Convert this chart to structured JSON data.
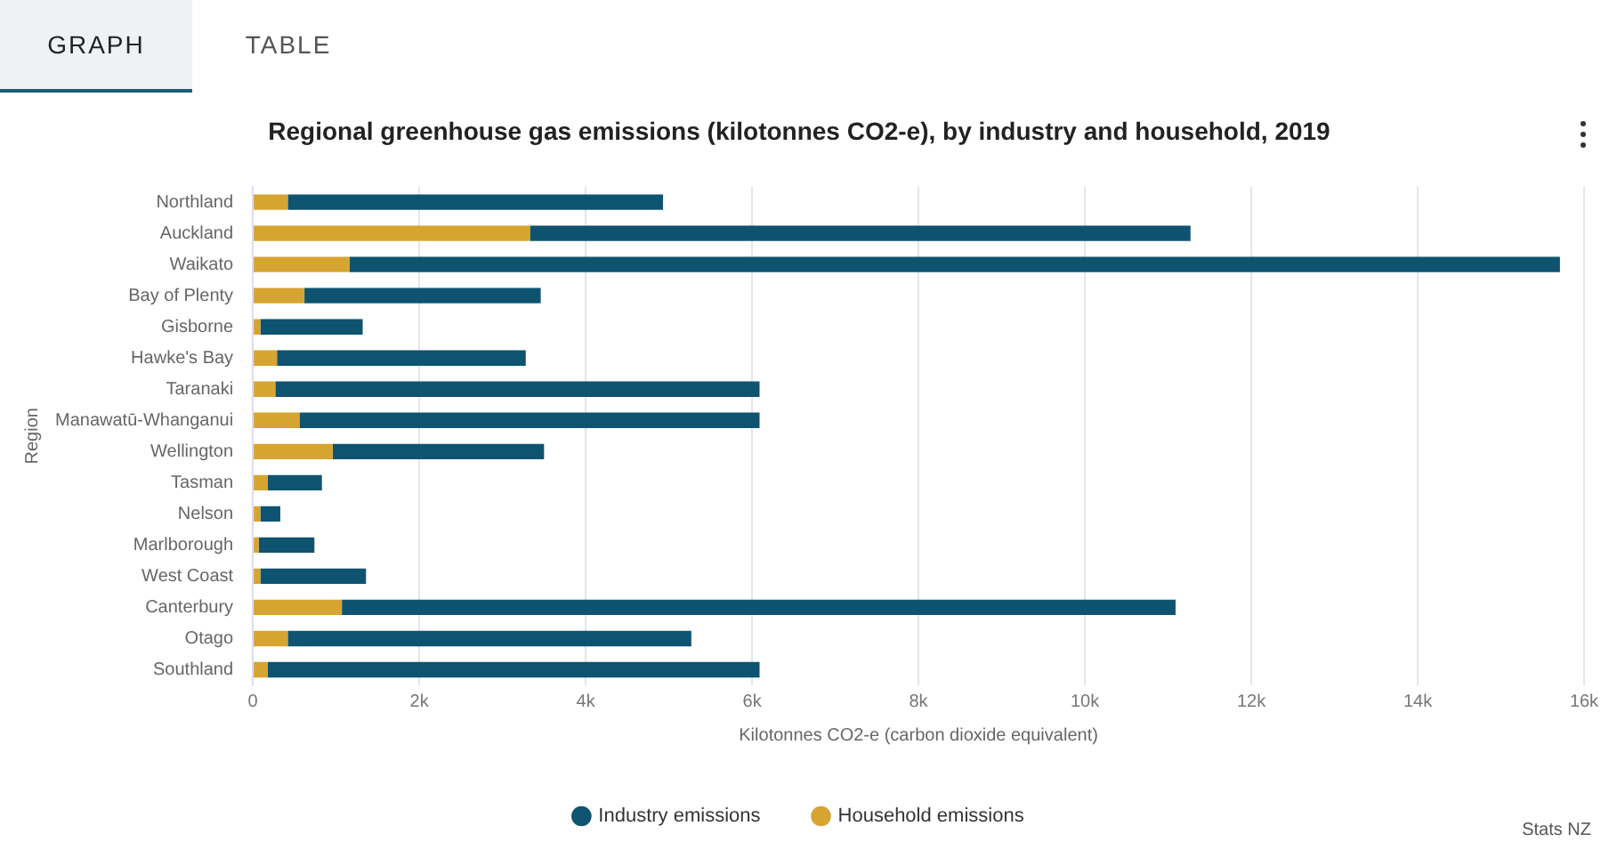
{
  "chart_data": {
    "type": "bar",
    "orientation": "horizontal",
    "stacked": true,
    "title": "Regional greenhouse gas emissions (kilotonnes CO2-e), by industry and household, 2019",
    "xlabel": "Kilotonnes CO2-e (carbon dioxide equivalent)",
    "ylabel": "Region",
    "categories": [
      "Northland",
      "Auckland",
      "Waikato",
      "Bay of Plenty",
      "Gisborne",
      "Hawke's Bay",
      "Taranaki",
      "Manawatū-Whanganui",
      "Wellington",
      "Tasman",
      "Nelson",
      "Marlborough",
      "West Coast",
      "Canterbury",
      "Otago",
      "Southland"
    ],
    "series": [
      {
        "name": "Household emissions",
        "color": "#d6a531",
        "values": [
          420,
          3330,
          1160,
          620,
          90,
          290,
          270,
          560,
          960,
          180,
          90,
          70,
          90,
          1070,
          420,
          180
        ]
      },
      {
        "name": "Industry emissions",
        "color": "#0e5470",
        "values": [
          4510,
          7940,
          14550,
          2840,
          1230,
          2990,
          5820,
          5530,
          2540,
          650,
          240,
          670,
          1270,
          10020,
          4850,
          5910
        ]
      }
    ],
    "xlim": [
      0,
      16000
    ],
    "xticks": [
      0,
      {
        "value": 2000,
        "label": "2k"
      },
      {
        "value": 4000,
        "label": "4k"
      },
      {
        "value": 6000,
        "label": "6k"
      },
      {
        "value": 8000,
        "label": "8k"
      },
      {
        "value": 10000,
        "label": "10k"
      },
      {
        "value": 12000,
        "label": "12k"
      },
      {
        "value": 14000,
        "label": "14k"
      },
      {
        "value": 16000,
        "label": "16k"
      }
    ],
    "grid": "x",
    "legend": "bottom",
    "annotations": [
      "GRAPH",
      "TABLE",
      "Stats NZ"
    ]
  }
}
